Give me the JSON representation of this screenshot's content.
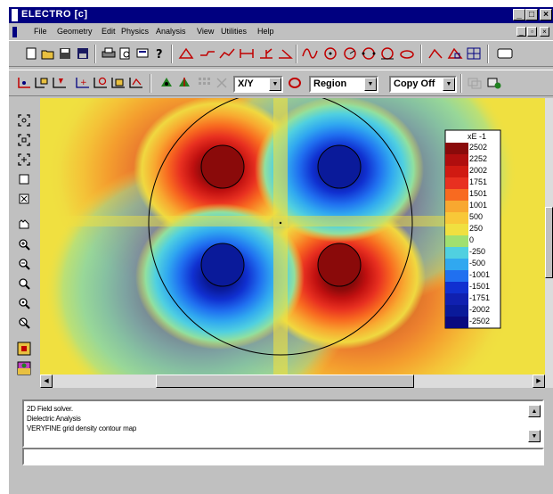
{
  "window": {
    "title": "ELECTRO [c]"
  },
  "menu": [
    "File",
    "Geometry",
    "Edit",
    "Physics",
    "Analysis",
    "View",
    "Utilities",
    "Help"
  ],
  "toolbar": {
    "view_combo": "X/Y",
    "selection_combo": "Region",
    "copy_combo": "Copy Off"
  },
  "legend": {
    "title": "xE -1",
    "labels": [
      "2502",
      "2252",
      "2002",
      "1751",
      "1501",
      "1001",
      "500",
      "250",
      "0",
      "-250",
      "-500",
      "-1001",
      "-1501",
      "-1751",
      "-2002",
      "-2502"
    ]
  },
  "output": {
    "lines": [
      "2D Field solver.",
      "Dielectric Analysis",
      "VERYFINE grid density contour map"
    ]
  },
  "colors": {
    "window_bg": "#c0c0c0",
    "titlebar": "#000080",
    "field_positive_max": "#8a0a0a",
    "field_negative_max": "#0a1a9a",
    "field_zero": "#f0e040"
  },
  "icons": {
    "main_toolbar": [
      "new-file-icon",
      "open-file-icon",
      "save-icon",
      "print-icon",
      "print-preview-icon",
      "export-icon",
      "help-icon",
      "draw-line-icon",
      "draw-polyline-icon",
      "draw-arc-icon",
      "dimension-icon",
      "draw-curve-icon",
      "circle-tools-icon"
    ],
    "left_toolbar": [
      "zoom-fit-icon",
      "zoom-window-icon",
      "zoom-all-icon",
      "select-icon",
      "grid-icon",
      "pan-icon",
      "zoom-in-icon",
      "zoom-out-icon",
      "zoom-previous-icon",
      "zoom-next-icon",
      "redraw-icon",
      "layer-icon",
      "palette-icon"
    ]
  }
}
